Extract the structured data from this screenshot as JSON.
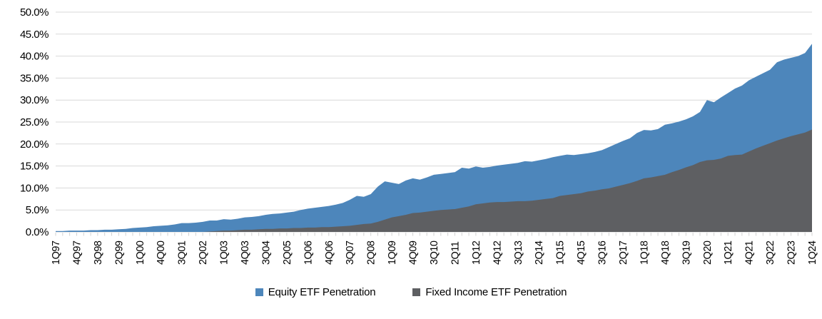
{
  "chart_data": {
    "type": "area",
    "title": "",
    "grid": "horizontal",
    "legend_position": "bottom",
    "overlap_mode": "overlaid-from-zero-fixed-income-in-front",
    "y_axis": {
      "min": 0,
      "max": 50,
      "step": 5,
      "format": "percent",
      "tick_labels": [
        "50.0%",
        "45.0%",
        "40.0%",
        "35.0%",
        "30.0%",
        "25.0%",
        "20.0%",
        "15.0%",
        "10.0%",
        "5.0%",
        "0.0%"
      ]
    },
    "x_axis": {
      "frequency": "quarterly",
      "first_point": "1Q97",
      "last_point": "1Q24",
      "points_per_label": 3,
      "tick_labels": [
        "1Q97",
        "4Q97",
        "3Q98",
        "2Q99",
        "1Q00",
        "4Q00",
        "3Q01",
        "2Q02",
        "1Q03",
        "4Q03",
        "3Q04",
        "2Q05",
        "1Q06",
        "4Q06",
        "3Q07",
        "2Q08",
        "1Q09",
        "4Q09",
        "3Q10",
        "2Q11",
        "1Q12",
        "4Q12",
        "3Q13",
        "2Q14",
        "1Q15",
        "4Q15",
        "3Q16",
        "2Q17",
        "1Q18",
        "4Q18",
        "3Q19",
        "2Q20",
        "1Q21",
        "4Q21",
        "3Q22",
        "2Q23",
        "1Q24"
      ]
    },
    "series": [
      {
        "name": "Equity ETF Penetration",
        "color": "#4D86BB",
        "values": [
          0.2,
          0.2,
          0.3,
          0.3,
          0.3,
          0.4,
          0.4,
          0.5,
          0.5,
          0.6,
          0.7,
          0.9,
          1.0,
          1.1,
          1.3,
          1.4,
          1.5,
          1.7,
          2.0,
          2.0,
          2.1,
          2.3,
          2.6,
          2.6,
          2.9,
          2.8,
          3.0,
          3.3,
          3.4,
          3.6,
          3.9,
          4.1,
          4.2,
          4.4,
          4.6,
          5.0,
          5.3,
          5.5,
          5.7,
          5.9,
          6.2,
          6.6,
          7.3,
          8.2,
          8.0,
          8.6,
          10.3,
          11.5,
          11.2,
          10.9,
          11.7,
          12.2,
          11.9,
          12.4,
          13.0,
          13.2,
          13.4,
          13.6,
          14.6,
          14.4,
          14.9,
          14.6,
          14.8,
          15.1,
          15.3,
          15.5,
          15.7,
          16.1,
          16.0,
          16.3,
          16.6,
          17.0,
          17.3,
          17.6,
          17.5,
          17.7,
          17.9,
          18.2,
          18.6,
          19.3,
          20.0,
          20.7,
          21.3,
          22.5,
          23.2,
          23.1,
          23.4,
          24.4,
          24.7,
          25.1,
          25.6,
          26.3,
          27.3,
          30.0,
          29.5,
          30.6,
          31.6,
          32.6,
          33.3,
          34.5,
          35.3,
          36.1,
          36.9,
          38.6,
          39.2,
          39.6,
          40.0,
          40.7,
          42.8
        ]
      },
      {
        "name": "Fixed Income ETF Penetration",
        "color": "#5E5F62",
        "values": [
          0,
          0,
          0,
          0,
          0,
          0,
          0,
          0,
          0,
          0,
          0,
          0,
          0,
          0,
          0,
          0,
          0,
          0,
          0,
          0,
          0,
          0,
          0.1,
          0.2,
          0.3,
          0.3,
          0.4,
          0.5,
          0.5,
          0.6,
          0.7,
          0.7,
          0.8,
          0.8,
          0.9,
          0.9,
          1.0,
          1.0,
          1.1,
          1.1,
          1.2,
          1.3,
          1.4,
          1.6,
          1.8,
          1.9,
          2.3,
          2.8,
          3.3,
          3.6,
          3.9,
          4.3,
          4.4,
          4.6,
          4.8,
          5.0,
          5.1,
          5.2,
          5.5,
          5.8,
          6.3,
          6.5,
          6.7,
          6.8,
          6.8,
          6.9,
          7.0,
          7.0,
          7.1,
          7.3,
          7.5,
          7.7,
          8.2,
          8.4,
          8.6,
          8.8,
          9.2,
          9.4,
          9.7,
          9.9,
          10.3,
          10.7,
          11.1,
          11.6,
          12.2,
          12.4,
          12.7,
          13.0,
          13.6,
          14.1,
          14.7,
          15.2,
          15.9,
          16.3,
          16.4,
          16.7,
          17.3,
          17.5,
          17.6,
          18.3,
          19.0,
          19.6,
          20.2,
          20.8,
          21.3,
          21.8,
          22.2,
          22.6,
          23.3
        ]
      }
    ]
  },
  "legend": {
    "items": [
      {
        "label": "Equity ETF Penetration",
        "color": "#4D86BB"
      },
      {
        "label": "Fixed Income ETF Penetration",
        "color": "#5E5F62"
      }
    ]
  },
  "colors": {
    "background": "#FFFFFF",
    "gridline": "#D9D9D9",
    "tick": "#D2D2D2",
    "text": "#000000"
  }
}
